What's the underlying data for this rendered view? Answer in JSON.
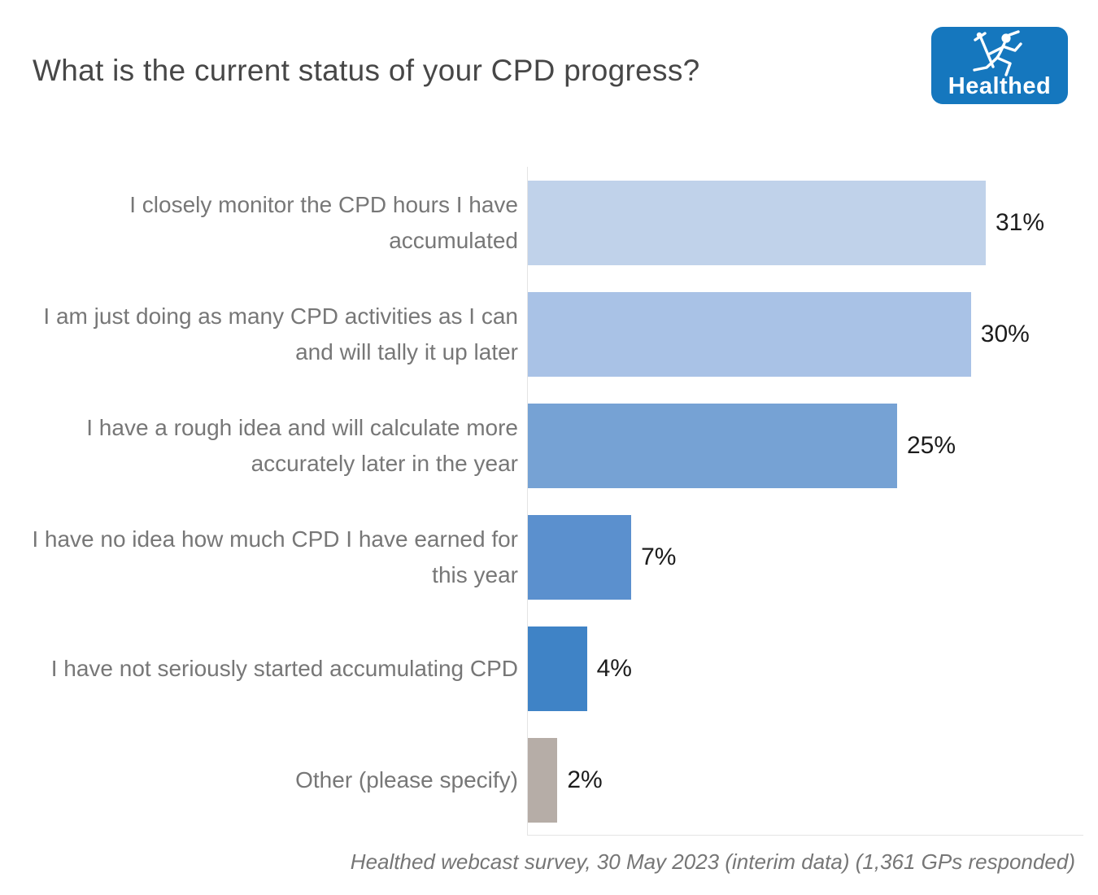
{
  "title": "What is the current status of your CPD progress?",
  "logo": {
    "wordmark": "Healthed",
    "bg_color": "#1577be",
    "icon": "hermes-runner-icon",
    "icon_color": "#ffffff"
  },
  "footer": {
    "source_note": "Healthed webcast survey, 30 May 2023 (interim data) (1,361 GPs responded)"
  },
  "chart_data": {
    "type": "bar",
    "orientation": "horizontal",
    "title": "What is the current status of your CPD progress?",
    "categories": [
      "I closely monitor the CPD hours I have accumulated",
      "I am just doing as many CPD activities as I can and will tally it up later",
      "I have a rough idea and will calculate more accurately later in the year",
      "I have no idea how much CPD I have earned for this year",
      "I have not seriously started accumulating CPD",
      "Other (please specify)"
    ],
    "values": [
      31,
      30,
      25,
      7,
      4,
      2
    ],
    "unit": "%",
    "value_labels": [
      "31%",
      "30%",
      "25%",
      "7%",
      "4%",
      "2%"
    ],
    "bar_colors": [
      "#c0d2ea",
      "#a9c2e6",
      "#76a2d4",
      "#5b90ce",
      "#3f83c6",
      "#b6ada7"
    ],
    "category_label_color": "#777777",
    "value_label_color": "#1c1c1c",
    "axis_color": "#e4e4e4",
    "xlim": [
      0,
      37.5
    ],
    "grid": false,
    "legend": false,
    "data_labels_position": "outside-end"
  }
}
